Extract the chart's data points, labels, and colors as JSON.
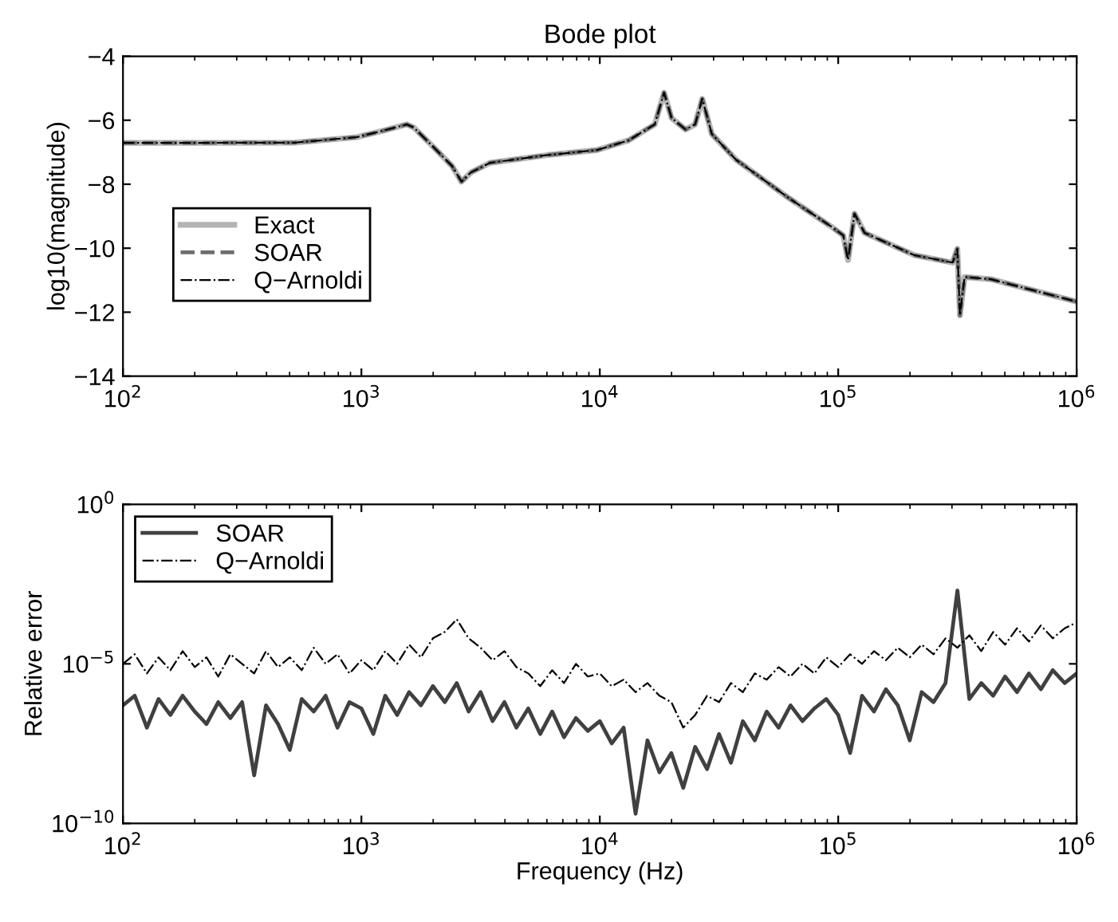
{
  "chart_data": [
    {
      "type": "line",
      "title": "Bode plot",
      "ylabel": "log10(magnitude)",
      "log": "x",
      "legend": "left",
      "grid": false,
      "xlim": [
        100,
        1000000
      ],
      "xticks": [
        {
          "value": 100,
          "label": "10$^{2}$"
        },
        {
          "value": 1000,
          "label": "10$^{3}$"
        },
        {
          "value": 10000,
          "label": "10$^{4}$"
        },
        {
          "value": 100000,
          "label": "10$^{5}$"
        },
        {
          "value": 1000000,
          "label": "10$^{6}$"
        }
      ],
      "ylim": [
        -14,
        -4
      ],
      "yticks": [
        -14,
        -12,
        -10,
        -8,
        -6,
        -4
      ],
      "x": [
        100,
        525,
        955,
        1230,
        1550,
        1660,
        2000,
        2400,
        2630,
        2880,
        3470,
        6030,
        9770,
        13200,
        17000,
        18600,
        20000,
        22900,
        25100,
        26900,
        29500,
        37200,
        61700,
        93300,
        105000,
        110000,
        117000,
        129000,
        209000,
        302000,
        316000,
        324000,
        339000,
        437000,
        1000000
      ],
      "series": [
        {
          "name": "Exact",
          "color": "#b4b4b4",
          "line_style": "solid",
          "values": [
            -6.71,
            -6.7,
            -6.53,
            -6.33,
            -6.13,
            -6.23,
            -6.83,
            -7.43,
            -7.92,
            -7.63,
            -7.33,
            -7.09,
            -6.93,
            -6.63,
            -6.13,
            -5.14,
            -5.93,
            -6.29,
            -6.13,
            -5.33,
            -6.43,
            -7.23,
            -8.42,
            -9.32,
            -9.6,
            -10.37,
            -8.92,
            -9.52,
            -10.22,
            -10.45,
            -10.02,
            -12.1,
            -10.9,
            -10.97,
            -11.67
          ]
        },
        {
          "name": "SOAR",
          "color": "#6e6e6e",
          "line_style": "dashed",
          "values": [
            -6.71,
            -6.7,
            -6.53,
            -6.33,
            -6.13,
            -6.23,
            -6.83,
            -7.43,
            -7.92,
            -7.63,
            -7.33,
            -7.09,
            -6.93,
            -6.63,
            -6.13,
            -5.14,
            -5.93,
            -6.29,
            -6.13,
            -5.33,
            -6.43,
            -7.23,
            -8.42,
            -9.32,
            -9.6,
            -10.37,
            -8.92,
            -9.52,
            -10.22,
            -10.45,
            -10.02,
            -12.1,
            -10.9,
            -10.97,
            -11.67
          ]
        },
        {
          "name": "Q−Arnoldi",
          "color": "#000000",
          "line_style": "dashdot",
          "values": [
            -6.71,
            -6.7,
            -6.53,
            -6.33,
            -6.13,
            -6.23,
            -6.83,
            -7.43,
            -7.92,
            -7.63,
            -7.33,
            -7.09,
            -6.93,
            -6.63,
            -6.13,
            -5.14,
            -5.93,
            -6.29,
            -6.13,
            -5.33,
            -6.43,
            -7.23,
            -8.42,
            -9.32,
            -9.6,
            -10.37,
            -8.92,
            -9.52,
            -10.22,
            -10.45,
            -10.02,
            -12.1,
            -10.9,
            -10.97,
            -11.67
          ]
        }
      ]
    },
    {
      "type": "line",
      "xlabel": "Frequency (Hz)",
      "ylabel": "Relative error",
      "log": "xy",
      "legend": "top left",
      "grid": false,
      "xlim": [
        100,
        1000000
      ],
      "xticks": [
        {
          "value": 100,
          "label": "10$^{2}$"
        },
        {
          "value": 1000,
          "label": "10$^{3}$"
        },
        {
          "value": 10000,
          "label": "10$^{4}$"
        },
        {
          "value": 100000,
          "label": "10$^{5}$"
        },
        {
          "value": 1000000,
          "label": "10$^{6}$"
        }
      ],
      "ylim": [
        1e-10,
        1
      ],
      "yticks": [
        {
          "value": 1e-10,
          "label": "10$^{−10}$"
        },
        {
          "value": 1e-05,
          "label": "10$^{−5}$"
        },
        {
          "value": 1,
          "label": "10$^{0}$"
        }
      ],
      "x": [
        100,
        112,
        126,
        141,
        158,
        178,
        200,
        224,
        251,
        282,
        316,
        355,
        398,
        447,
        501,
        562,
        631,
        708,
        794,
        891,
        1000,
        1122,
        1259,
        1413,
        1585,
        1778,
        1995,
        2239,
        2512,
        2818,
        3162,
        3548,
        3981,
        4467,
        5012,
        5623,
        6310,
        7079,
        7943,
        8913,
        10000,
        11220,
        12589,
        14125,
        15849,
        17783,
        19953,
        22387,
        25119,
        28184,
        31623,
        35481,
        39811,
        44668,
        50119,
        56234,
        63096,
        70795,
        79433,
        89125,
        100000,
        112202,
        125893,
        141254,
        158489,
        177828,
        199526,
        223872,
        251189,
        281838,
        316228,
        354813,
        398107,
        446684,
        501187,
        562341,
        630957,
        707946,
        794328,
        891251,
        1000000
      ],
      "series": [
        {
          "name": "SOAR",
          "color": "#404040",
          "line_style": "solid",
          "values": [
            5e-07,
            1e-06,
            1e-07,
            7.9e-07,
            2.5e-07,
            1e-06,
            3.2e-07,
            1.3e-07,
            6.3e-07,
            2e-07,
            6.3e-07,
            3.2e-09,
            5e-07,
            1.3e-07,
            2e-08,
            7.9e-07,
            3.2e-07,
            1e-06,
            1e-07,
            6.3e-07,
            4e-07,
            6.3e-08,
            1e-06,
            2.5e-07,
            1.3e-06,
            5e-07,
            2e-06,
            6.3e-07,
            2.5e-06,
            3.2e-07,
            1.3e-06,
            1.6e-07,
            6.3e-07,
            1e-07,
            4e-07,
            6.3e-08,
            3.2e-07,
            5e-08,
            2e-07,
            7.9e-08,
            1.6e-07,
            3.2e-08,
            1e-07,
            2e-10,
            4e-08,
            4e-09,
            1.6e-08,
            1.3e-09,
            2.5e-08,
            5e-09,
            6.3e-08,
            7.9e-09,
            1.6e-07,
            4e-08,
            3.2e-07,
            1e-07,
            5e-07,
            1.6e-07,
            4e-07,
            7.9e-07,
            2.5e-07,
            1.6e-08,
            1e-06,
            3.2e-07,
            1.6e-06,
            5e-07,
            4e-08,
            1.3e-06,
            6.3e-07,
            2.5e-06,
            0.002,
            7.9e-07,
            2.5e-06,
            1e-06,
            4e-06,
            1.3e-06,
            5e-06,
            1.6e-06,
            6.3e-06,
            2.5e-06,
            5e-06
          ]
        },
        {
          "name": "Q−Arnoldi",
          "color": "#000000",
          "line_style": "dashdot",
          "values": [
            1e-05,
            2e-05,
            5e-06,
            1.6e-05,
            6.3e-06,
            2.5e-05,
            7.9e-06,
            1.6e-05,
            4e-06,
            2e-05,
            1e-05,
            5e-06,
            2.5e-05,
            7.9e-06,
            1.6e-05,
            6.3e-06,
            3.2e-05,
            1e-05,
            2e-05,
            5e-06,
            1.3e-05,
            6.3e-06,
            2.5e-05,
            1e-05,
            4e-05,
            1.6e-05,
            6.3e-05,
            0.0001,
            0.00025,
            6.3e-05,
            3.2e-05,
            1.3e-05,
            2.5e-05,
            7.9e-06,
            5e-06,
            2e-06,
            6.3e-06,
            2.5e-06,
            1e-05,
            4e-06,
            5e-06,
            2e-06,
            3.2e-06,
            1.3e-06,
            2.5e-06,
            1e-06,
            6.3e-07,
            1e-07,
            2.5e-07,
            1e-06,
            6.3e-07,
            2.5e-06,
            1.3e-06,
            5e-06,
            3.2e-06,
            7.9e-06,
            4e-06,
            1e-05,
            5e-06,
            1.6e-05,
            7.9e-06,
            2e-05,
            1e-05,
            2.5e-05,
            1.3e-05,
            3.2e-05,
            1.6e-05,
            4e-05,
            2e-05,
            6.3e-05,
            3.2e-05,
            7.9e-05,
            2.5e-05,
            0.0001,
            4e-05,
            0.00013,
            5e-05,
            0.00016,
            6.3e-05,
            0.00013,
            0.0002
          ]
        }
      ]
    }
  ]
}
